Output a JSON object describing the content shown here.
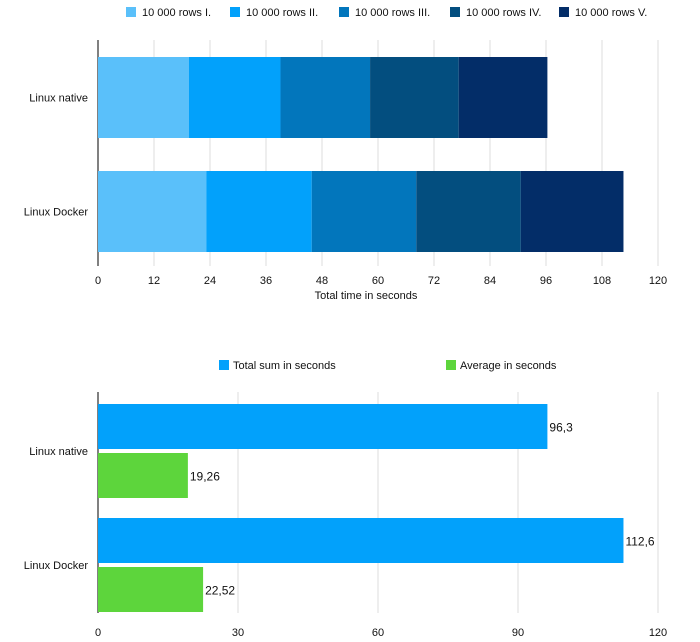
{
  "chart_data": [
    {
      "type": "bar",
      "orientation": "horizontal",
      "stacked": true,
      "categories": [
        "Linux native",
        "Linux Docker"
      ],
      "series": [
        {
          "name": "10 000 rows I.",
          "color": "#5ac0fa",
          "values": [
            19.5,
            23.2
          ]
        },
        {
          "name": "10 000 rows II.",
          "color": "#02a1fb",
          "values": [
            19.6,
            22.6
          ]
        },
        {
          "name": "10 000 rows III.",
          "color": "#0276bc",
          "values": [
            19.2,
            22.4
          ]
        },
        {
          "name": "10 000 rows IV.",
          "color": "#034e7f",
          "values": [
            19.0,
            22.4
          ]
        },
        {
          "name": "10 000 rows V.",
          "color": "#032d68",
          "values": [
            19.0,
            22.0
          ]
        }
      ],
      "xlabel": "Total time in seconds",
      "xlim": [
        0,
        120
      ],
      "xticks": [
        "0",
        "12",
        "24",
        "36",
        "48",
        "60",
        "72",
        "84",
        "96",
        "108",
        "120"
      ],
      "legend": "top",
      "grid": true
    },
    {
      "type": "bar",
      "orientation": "horizontal",
      "stacked": false,
      "categories": [
        "Linux native",
        "Linux Docker"
      ],
      "series": [
        {
          "name": "Total sum in seconds",
          "color": "#02a1fb",
          "values": [
            96.3,
            112.6
          ],
          "labels": [
            "96,3",
            "112,6"
          ]
        },
        {
          "name": "Average in seconds",
          "color": "#5dd53c",
          "values": [
            19.26,
            22.52
          ],
          "labels": [
            "19,26",
            "22,52"
          ]
        }
      ],
      "xlim": [
        0,
        120
      ],
      "xticks": [
        "0",
        "30",
        "60",
        "90",
        "120"
      ],
      "legend": "top",
      "grid": true
    }
  ]
}
